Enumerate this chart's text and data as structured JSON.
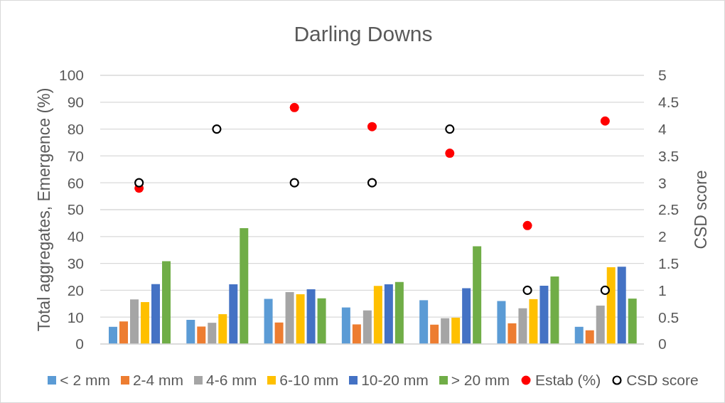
{
  "chart_data": {
    "type": "bar",
    "title": "Darling Downs",
    "ylabel": "Total aggregates, Emergence (%)",
    "y2label": "CSD score",
    "categories": [
      null,
      null,
      null,
      null,
      null,
      null,
      null
    ],
    "series": [
      {
        "name": "< 2 mm",
        "color": "#5b9bd5",
        "values": [
          6.4,
          9.0,
          16.8,
          13.6,
          16.3,
          16.0,
          6.4
        ]
      },
      {
        "name": "2-4 mm",
        "color": "#ed7d31",
        "values": [
          8.4,
          6.5,
          8.0,
          7.3,
          7.2,
          7.7,
          5.1
        ]
      },
      {
        "name": "4-6 mm",
        "color": "#a5a5a5",
        "values": [
          16.6,
          7.9,
          19.3,
          12.5,
          9.6,
          13.3,
          14.3
        ]
      },
      {
        "name": "6-10 mm",
        "color": "#ffc000",
        "values": [
          15.6,
          11.1,
          18.5,
          21.6,
          9.8,
          16.7,
          28.6
        ]
      },
      {
        "name": "10-20 mm",
        "color": "#4472c4",
        "values": [
          22.3,
          22.2,
          20.4,
          22.2,
          20.8,
          21.7,
          28.8
        ]
      },
      {
        "name": "> 20 mm",
        "color": "#70ad47",
        "values": [
          30.8,
          43.1,
          17.0,
          23.1,
          36.4,
          25.1,
          16.9
        ]
      },
      {
        "name": "Estab (%)",
        "type": "scatter",
        "color": "#ff0000",
        "values": [
          58.0,
          null,
          88.0,
          80.9,
          71.0,
          44.1,
          83.0
        ]
      },
      {
        "name": "CSD score",
        "type": "scatter",
        "color": "#000000",
        "axis": "y2",
        "values": [
          3,
          4,
          3,
          3,
          4,
          1,
          1
        ]
      }
    ],
    "ylim": [
      0,
      100
    ],
    "yticks": [
      0,
      10,
      20,
      30,
      40,
      50,
      60,
      70,
      80,
      90,
      100
    ],
    "y2lim": [
      0,
      5
    ],
    "y2ticks": [
      0,
      0.5,
      1,
      1.5,
      2,
      2.5,
      3,
      3.5,
      4,
      4.5,
      5
    ],
    "grid": "y",
    "legend": "bottom",
    "marker": "circle"
  }
}
